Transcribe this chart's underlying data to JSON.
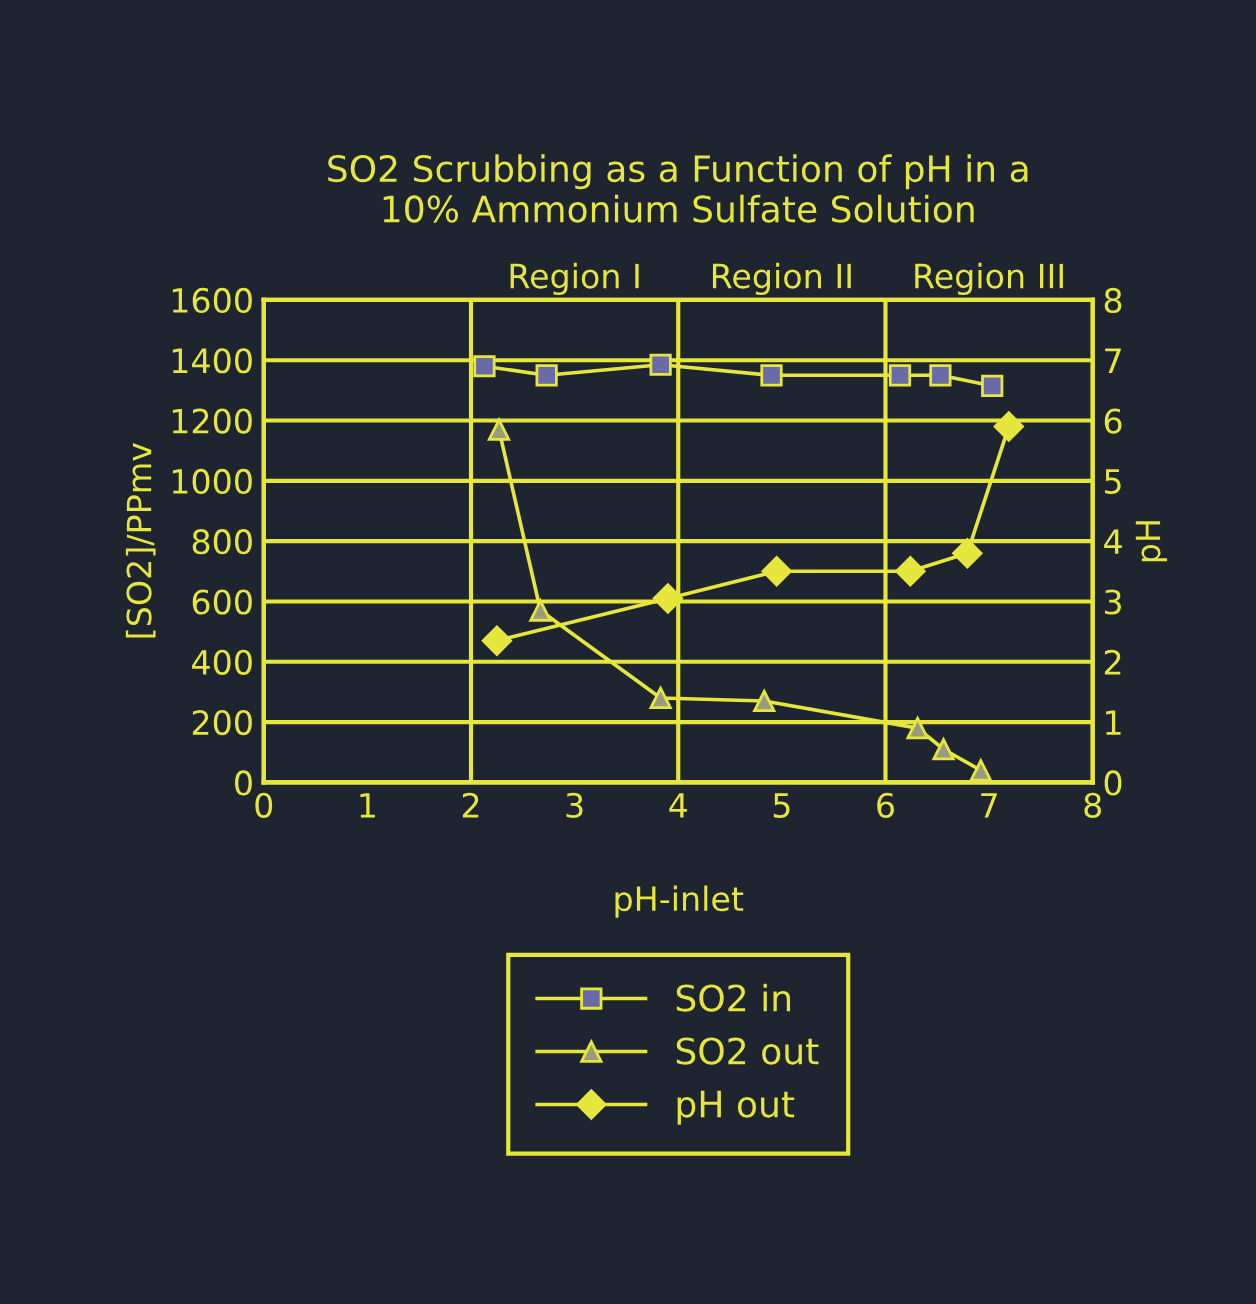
{
  "chart_data": {
    "type": "line",
    "title": "SO2 Scrubbing as a Function of pH in a\n10% Ammonium Sulfate Solution",
    "xlabel": "pH-inlet",
    "ylabel": "[SO2]/PPmv",
    "y2label": "pH",
    "xlim": [
      0,
      8
    ],
    "xticks": [
      0,
      1,
      2,
      3,
      4,
      5,
      6,
      7,
      8
    ],
    "ylim": [
      0,
      1600
    ],
    "yticks": [
      0,
      200,
      400,
      600,
      800,
      1000,
      1200,
      1400,
      1600
    ],
    "y2lim": [
      0,
      8
    ],
    "y2ticks": [
      0,
      1,
      2,
      3,
      4,
      5,
      6,
      7,
      8
    ],
    "grid": "y",
    "legend": "bottom",
    "ref_lines": [
      {
        "axis": "x",
        "value": 2
      },
      {
        "axis": "x",
        "value": 4
      },
      {
        "axis": "x",
        "value": 6
      }
    ],
    "annotations": [
      "Region I",
      "Region II",
      "Region III"
    ],
    "series": [
      {
        "name": "SO2 in",
        "color": "#e6e63c",
        "marker": "square",
        "x": [
          2.13,
          2.73,
          3.83,
          4.9,
          6.14,
          6.53,
          7.03
        ],
        "values": [
          1380,
          1350,
          1385,
          1350,
          1350,
          1350,
          1315
        ]
      },
      {
        "name": "SO2 out",
        "color": "#e6e63c",
        "marker": "triangle",
        "x": [
          2.27,
          2.67,
          3.83,
          4.83,
          6.31,
          6.56,
          6.92
        ],
        "values": [
          1170,
          570,
          280,
          270,
          180,
          110,
          40
        ]
      },
      {
        "name": "pH out",
        "color": "#e6e63c",
        "marker": "diamond",
        "axis": "y2",
        "x": [
          2.25,
          3.9,
          4.95,
          6.24,
          6.79,
          7.19
        ],
        "values": [
          2.35,
          3.05,
          3.5,
          3.5,
          3.8,
          5.9
        ]
      }
    ]
  }
}
